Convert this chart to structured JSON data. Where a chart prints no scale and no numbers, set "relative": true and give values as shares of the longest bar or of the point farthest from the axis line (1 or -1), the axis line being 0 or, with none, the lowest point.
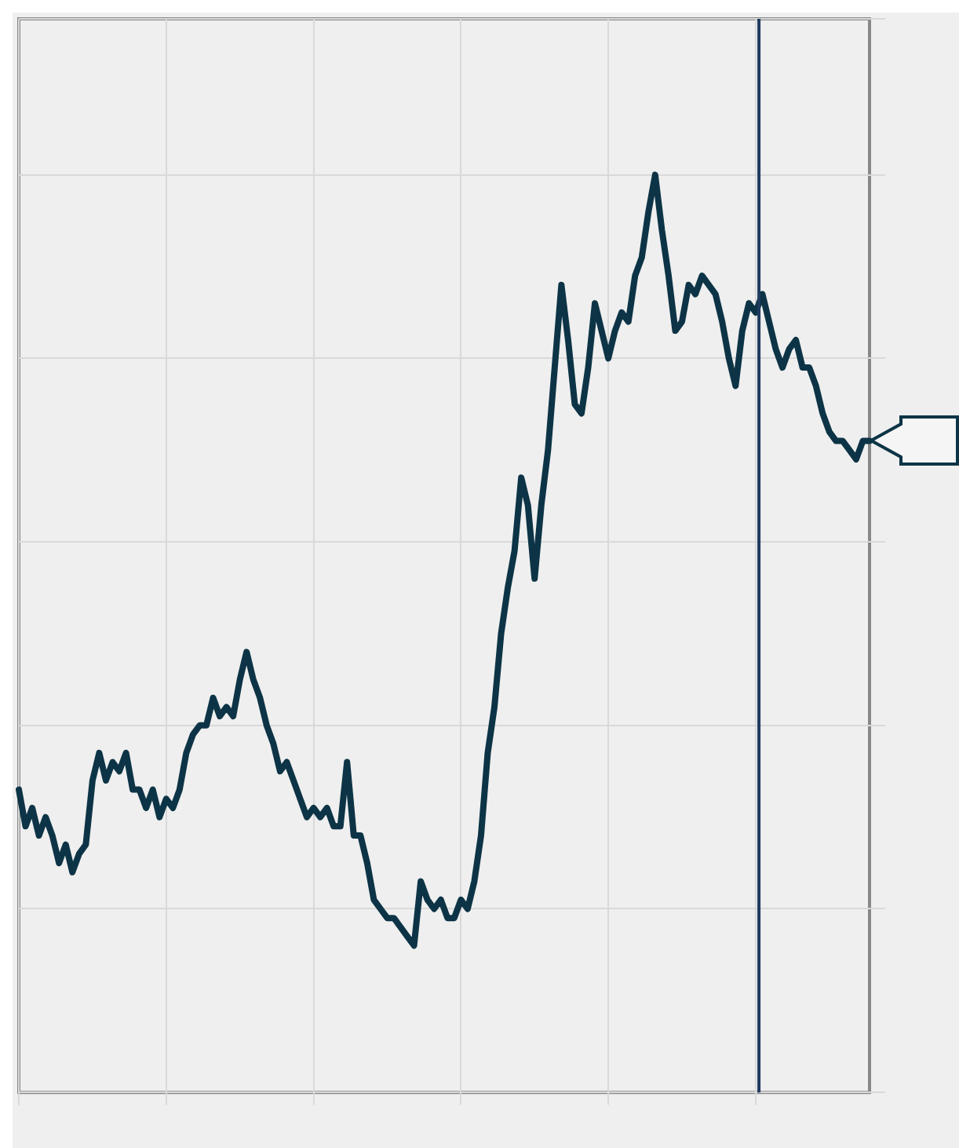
{
  "chart_data": {
    "type": "line",
    "relative": true,
    "grid": true,
    "marker": "none",
    "line_style": "solid",
    "categories": [
      null,
      null,
      null,
      null,
      null,
      null,
      null,
      null,
      null,
      null,
      null,
      null,
      null,
      null,
      null,
      null,
      null,
      null,
      null,
      null,
      null,
      null,
      null,
      null,
      null,
      null,
      null,
      null,
      null,
      null,
      null,
      null,
      null,
      null,
      null,
      null,
      null,
      null,
      null,
      null,
      null,
      null,
      null,
      null,
      null,
      null,
      null,
      null,
      null,
      null,
      null,
      null,
      null,
      null,
      null,
      null,
      null,
      null,
      null,
      null,
      null,
      null,
      null,
      null,
      null,
      null,
      null,
      null,
      null,
      null,
      null,
      null,
      null,
      null,
      null,
      null,
      null,
      null,
      null,
      null,
      null,
      null,
      null,
      null,
      null,
      null,
      null,
      null,
      null,
      null,
      null,
      null,
      null,
      null,
      null,
      null,
      null,
      null,
      null,
      null,
      null,
      null,
      null,
      null,
      null,
      null,
      null,
      null,
      null,
      null,
      null,
      null,
      null,
      null,
      null,
      null,
      null,
      null,
      null,
      null,
      null,
      null,
      null,
      null,
      null,
      null,
      null,
      null
    ],
    "series": [
      {
        "color": "#0d3446",
        "values": [
          0.33,
          0.29,
          0.31,
          0.28,
          0.3,
          0.28,
          0.25,
          0.27,
          0.24,
          0.26,
          0.27,
          0.34,
          0.37,
          0.34,
          0.36,
          0.35,
          0.37,
          0.33,
          0.33,
          0.31,
          0.33,
          0.3,
          0.32,
          0.31,
          0.33,
          0.37,
          0.39,
          0.4,
          0.4,
          0.43,
          0.41,
          0.42,
          0.41,
          0.45,
          0.48,
          0.45,
          0.43,
          0.4,
          0.38,
          0.35,
          0.36,
          0.34,
          0.32,
          0.3,
          0.31,
          0.3,
          0.31,
          0.29,
          0.29,
          0.36,
          0.28,
          0.28,
          0.25,
          0.21,
          0.2,
          0.19,
          0.19,
          0.18,
          0.17,
          0.16,
          0.23,
          0.21,
          0.2,
          0.21,
          0.19,
          0.19,
          0.21,
          0.2,
          0.23,
          0.28,
          0.37,
          0.42,
          0.5,
          0.55,
          0.59,
          0.67,
          0.64,
          0.56,
          0.64,
          0.7,
          0.79,
          0.88,
          0.82,
          0.75,
          0.74,
          0.79,
          0.86,
          0.83,
          0.8,
          0.83,
          0.85,
          0.84,
          0.89,
          0.91,
          0.96,
          1,
          0.94,
          0.89,
          0.83,
          0.84,
          0.88,
          0.87,
          0.89,
          0.88,
          0.87,
          0.84,
          0.8,
          0.77,
          0.83,
          0.86,
          0.85,
          0.87,
          0.84,
          0.81,
          0.79,
          0.81,
          0.82,
          0.79,
          0.79,
          0.77,
          0.74,
          0.72,
          0.71,
          0.71,
          0.7,
          0.69,
          0.71,
          0.71
        ]
      }
    ]
  }
}
